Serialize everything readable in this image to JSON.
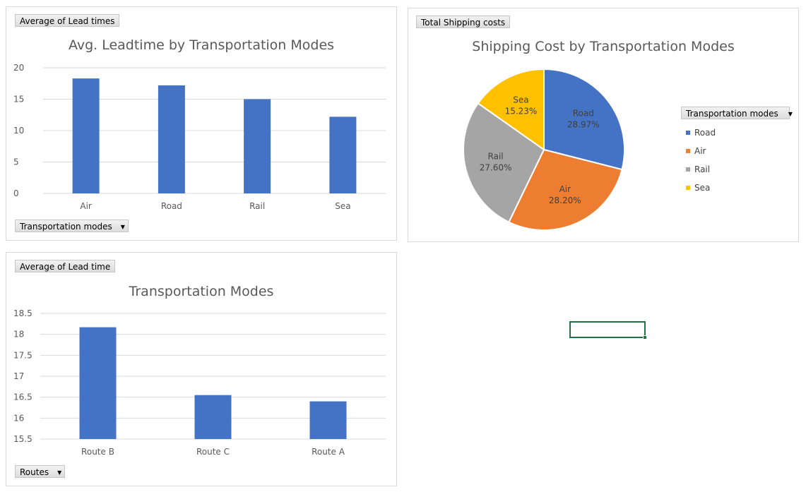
{
  "panels": {
    "leadtime_mode": {
      "value_button": "Average of Lead times",
      "axis_button": "Transportation modes"
    },
    "shipping_cost": {
      "value_button": "Total Shipping costs",
      "legend_button": "Transportation modes"
    },
    "leadtime_route": {
      "value_button": "Average of Lead time",
      "axis_button": "Routes"
    }
  },
  "chart_data": [
    {
      "type": "bar",
      "title": "Avg. Leadtime by Transportation Modes",
      "categories": [
        "Air",
        "Road",
        "Rail",
        "Sea"
      ],
      "values": [
        18.3,
        17.2,
        15.0,
        12.2
      ],
      "ylim": [
        0,
        20
      ],
      "yticks": [
        "20",
        "15",
        "10",
        "5",
        "0"
      ],
      "grid": true,
      "color": "#4472c4"
    },
    {
      "type": "pie",
      "title": "Shipping Cost by Transportation Modes",
      "slices": [
        {
          "label": "Road",
          "percent": "28.97%",
          "value": 28.97,
          "color": "#4472c4"
        },
        {
          "label": "Air",
          "percent": "28.20%",
          "value": 28.2,
          "color": "#ed7d31"
        },
        {
          "label": "Rail",
          "percent": "27.60%",
          "value": 27.6,
          "color": "#a5a5a5"
        },
        {
          "label": "Sea",
          "percent": "15.23%",
          "value": 15.23,
          "color": "#ffc000"
        }
      ],
      "legend": [
        "Road",
        "Air",
        "Rail",
        "Sea"
      ],
      "legend_position": "right"
    },
    {
      "type": "bar",
      "title": "Transportation Modes",
      "categories": [
        "Route B",
        "Route C",
        "Route A"
      ],
      "values": [
        18.17,
        16.55,
        16.4
      ],
      "ylim": [
        15.5,
        18.5
      ],
      "yticks": [
        "18.5",
        "18",
        "17.5",
        "17",
        "16.5",
        "16",
        "15.5"
      ],
      "grid": true,
      "color": "#4472c4"
    }
  ]
}
